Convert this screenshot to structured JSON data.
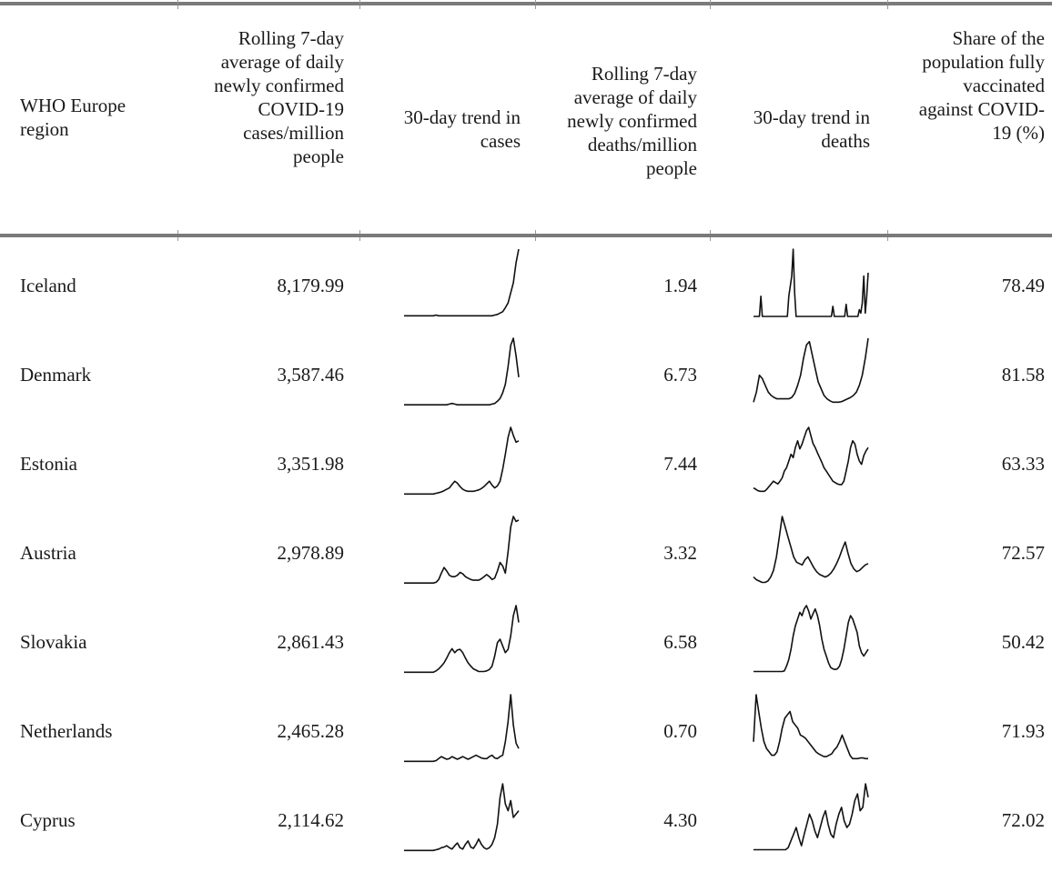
{
  "table": {
    "headers": [
      {
        "key": "region",
        "label": "WHO Europe region"
      },
      {
        "key": "cases_avg",
        "label": "Rolling 7-day average of daily newly confirmed COVID-19 cases/million people"
      },
      {
        "key": "cases_trend",
        "label": "30-day trend in cases"
      },
      {
        "key": "deaths_avg",
        "label": "Rolling 7-day average of daily newly confirmed deaths/million people"
      },
      {
        "key": "deaths_trend",
        "label": "30-day trend in deaths"
      },
      {
        "key": "vaccinated",
        "label": "Share of the population fully vaccinated against COVID-19 (%)"
      }
    ],
    "rows": [
      {
        "region": "Iceland",
        "cases_avg": "8,179.99",
        "deaths_avg": "1.94",
        "vaccinated": "78.49"
      },
      {
        "region": "Denmark",
        "cases_avg": "3,587.46",
        "deaths_avg": "6.73",
        "vaccinated": "81.58"
      },
      {
        "region": "Estonia",
        "cases_avg": "3,351.98",
        "deaths_avg": "7.44",
        "vaccinated": "63.33"
      },
      {
        "region": "Austria",
        "cases_avg": "2,978.89",
        "deaths_avg": "3.32",
        "vaccinated": "72.57"
      },
      {
        "region": "Slovakia",
        "cases_avg": "2,861.43",
        "deaths_avg": "6.58",
        "vaccinated": "50.42"
      },
      {
        "region": "Netherlands",
        "cases_avg": "2,465.28",
        "deaths_avg": "0.70",
        "vaccinated": "71.93"
      },
      {
        "region": "Cyprus",
        "cases_avg": "2,114.62",
        "deaths_avg": "4.30",
        "vaccinated": "72.02"
      }
    ]
  },
  "chart_data": {
    "type": "table",
    "columns": [
      "WHO Europe region",
      "Rolling 7-day average of daily newly confirmed COVID-19 cases/million people",
      "30-day trend in cases",
      "Rolling 7-day average of daily newly confirmed deaths/million people",
      "30-day trend in deaths",
      "Share of the population fully vaccinated against COVID-19 (%)"
    ],
    "sparklines": {
      "cases": [
        [
          1,
          1,
          1,
          1,
          1,
          1,
          1,
          1,
          1,
          1,
          1,
          1,
          2,
          1,
          1,
          1,
          1,
          1,
          1,
          1,
          1,
          1,
          1,
          1,
          1,
          1,
          1,
          1,
          1,
          1,
          1,
          1,
          1,
          1,
          2,
          3,
          5,
          7,
          13,
          20,
          35,
          50,
          80,
          100
        ],
        [
          1,
          1,
          1,
          1,
          1,
          1,
          1,
          1,
          1,
          1,
          1,
          1,
          1,
          1,
          1,
          1,
          1,
          2,
          3,
          2,
          1,
          1,
          1,
          1,
          1,
          1,
          1,
          1,
          1,
          1,
          1,
          1,
          1,
          2,
          3,
          6,
          10,
          18,
          30,
          55,
          85,
          95,
          70,
          40
        ],
        [
          1,
          1,
          1,
          1,
          1,
          1,
          1,
          1,
          1,
          1,
          1,
          1,
          2,
          3,
          4,
          6,
          8,
          10,
          15,
          20,
          17,
          12,
          8,
          6,
          5,
          5,
          5,
          6,
          7,
          9,
          12,
          16,
          20,
          14,
          10,
          13,
          20,
          38,
          60,
          85,
          100,
          88,
          78,
          80
        ],
        [
          1,
          1,
          1,
          1,
          1,
          1,
          1,
          1,
          1,
          1,
          1,
          1,
          2,
          6,
          15,
          23,
          18,
          12,
          10,
          10,
          12,
          16,
          14,
          10,
          8,
          6,
          5,
          5,
          5,
          7,
          10,
          13,
          10,
          6,
          8,
          18,
          30,
          25,
          15,
          45,
          80,
          95,
          88,
          90
        ],
        [
          1,
          1,
          1,
          1,
          1,
          1,
          1,
          1,
          1,
          1,
          1,
          1,
          3,
          6,
          10,
          15,
          22,
          30,
          36,
          30,
          34,
          35,
          30,
          22,
          15,
          10,
          6,
          4,
          2,
          2,
          2,
          3,
          5,
          10,
          25,
          45,
          50,
          40,
          30,
          35,
          55,
          85,
          100,
          75
        ],
        [
          1,
          1,
          1,
          1,
          1,
          1,
          1,
          1,
          1,
          1,
          1,
          1,
          2,
          5,
          8,
          6,
          4,
          5,
          8,
          6,
          4,
          6,
          8,
          6,
          4,
          6,
          8,
          10,
          8,
          6,
          5,
          5,
          8,
          10,
          6,
          5,
          8,
          10,
          30,
          60,
          100,
          55,
          28,
          20
        ],
        [
          1,
          1,
          1,
          1,
          1,
          1,
          1,
          1,
          1,
          1,
          1,
          1,
          2,
          3,
          5,
          6,
          8,
          5,
          3,
          8,
          12,
          5,
          3,
          10,
          15,
          6,
          4,
          10,
          18,
          10,
          5,
          3,
          5,
          10,
          20,
          40,
          80,
          100,
          70,
          60,
          75,
          50,
          55,
          60
        ]
      ],
      "deaths": [
        [
          0,
          0,
          0,
          0,
          0,
          30,
          0,
          0,
          0,
          0,
          0,
          0,
          0,
          0,
          0,
          0,
          0,
          0,
          0,
          0,
          0,
          0,
          0,
          0,
          30,
          45,
          60,
          100,
          35,
          0,
          0,
          0,
          0,
          0,
          0,
          0,
          0,
          0,
          0,
          0,
          0,
          0,
          0,
          0,
          0,
          0,
          0,
          0,
          0,
          0,
          0,
          0,
          0,
          0,
          15,
          0,
          0,
          0,
          0,
          0,
          0,
          0,
          0,
          18,
          0,
          0,
          0,
          0,
          0,
          0,
          0,
          0,
          10,
          5,
          20,
          60,
          5,
          30,
          65
        ],
        [
          5,
          20,
          45,
          40,
          30,
          20,
          15,
          12,
          10,
          10,
          10,
          10,
          10,
          12,
          18,
          30,
          45,
          70,
          90,
          95,
          75,
          55,
          35,
          25,
          15,
          10,
          7,
          5,
          5,
          5,
          6,
          8,
          10,
          12,
          15,
          20,
          30,
          45,
          70,
          100
        ],
        [
          10,
          8,
          6,
          5,
          5,
          5,
          8,
          12,
          16,
          20,
          18,
          16,
          20,
          25,
          35,
          40,
          50,
          60,
          55,
          70,
          80,
          68,
          75,
          85,
          95,
          100,
          88,
          76,
          70,
          62,
          55,
          48,
          40,
          35,
          30,
          25,
          20,
          18,
          16,
          15,
          15,
          20,
          35,
          50,
          70,
          80,
          75,
          60,
          50,
          45,
          58,
          65,
          70
        ],
        [
          10,
          6,
          4,
          2,
          2,
          4,
          10,
          20,
          40,
          70,
          100,
          85,
          70,
          55,
          40,
          32,
          30,
          28,
          36,
          40,
          32,
          24,
          18,
          14,
          12,
          10,
          12,
          16,
          22,
          30,
          40,
          52,
          62,
          45,
          30,
          22,
          18,
          20,
          24,
          28,
          30
        ],
        [
          2,
          2,
          2,
          2,
          2,
          2,
          2,
          2,
          2,
          2,
          2,
          2,
          2,
          2,
          3,
          10,
          20,
          35,
          55,
          70,
          80,
          90,
          85,
          95,
          100,
          92,
          80,
          88,
          95,
          85,
          70,
          50,
          35,
          25,
          15,
          8,
          6,
          5,
          6,
          10,
          20,
          35,
          55,
          75,
          85,
          80,
          70,
          60,
          40,
          30,
          25,
          30,
          35
        ],
        [
          30,
          100,
          75,
          50,
          30,
          20,
          15,
          10,
          10,
          15,
          30,
          50,
          65,
          70,
          75,
          60,
          55,
          50,
          40,
          38,
          35,
          30,
          25,
          20,
          15,
          12,
          10,
          8,
          8,
          10,
          12,
          18,
          22,
          30,
          40,
          30,
          20,
          10,
          5,
          5,
          5,
          6,
          6,
          5,
          5
        ],
        [
          2,
          2,
          2,
          2,
          2,
          2,
          2,
          2,
          2,
          2,
          2,
          2,
          2,
          5,
          15,
          25,
          35,
          20,
          8,
          25,
          40,
          55,
          45,
          30,
          20,
          35,
          50,
          60,
          40,
          25,
          20,
          40,
          55,
          65,
          45,
          35,
          40,
          55,
          75,
          85,
          60,
          65,
          100,
          80
        ]
      ]
    }
  }
}
